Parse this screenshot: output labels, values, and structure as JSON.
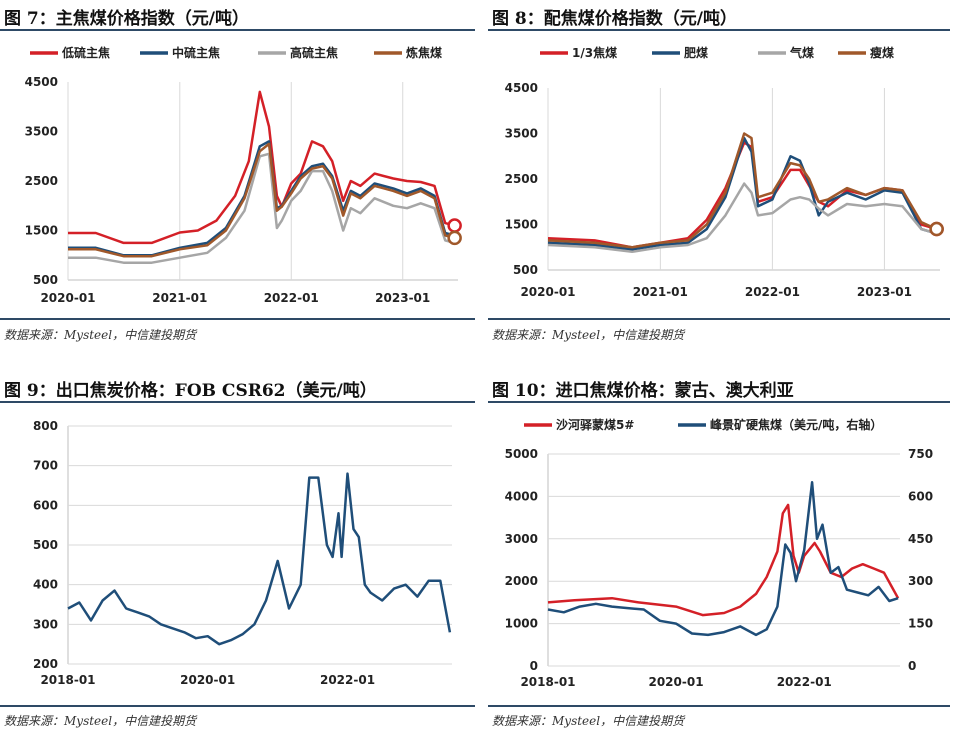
{
  "panels": [
    {
      "title": "图 7：主焦煤价格指数（元/吨）",
      "source": "数据来源：Mysteel，中信建投期货"
    },
    {
      "title": "图 8：配焦煤价格指数（元/吨）",
      "source": "数据来源：Mysteel，中信建投期货"
    },
    {
      "title": "图 9：出口焦炭价格：FOB CSR62（美元/吨）",
      "source": "数据来源：Mysteel，中信建投期货"
    },
    {
      "title": "图 10：进口焦煤价格：蒙古、澳大利亚",
      "source": "数据来源：Mysteel，中信建投期货"
    }
  ],
  "chart_data": [
    {
      "type": "line",
      "title": "图 7：主焦煤价格指数（元/吨）",
      "ylim": [
        500,
        4500
      ],
      "yticks": [
        "4500",
        "3500",
        "2500",
        "1500",
        "500"
      ],
      "xticks": [
        "2020-01",
        "2021-01",
        "2022-01",
        "2023-01"
      ],
      "xlim": [
        "2020-01-01",
        "2023-07-01"
      ],
      "grid": "vertical",
      "legend": "top",
      "series": [
        {
          "name": "低硫主焦",
          "color": "#d42027",
          "x": [
            "2020-01-01",
            "2020-04-01",
            "2020-07-01",
            "2020-10-01",
            "2021-01-01",
            "2021-03-01",
            "2021-05-01",
            "2021-07-01",
            "2021-08-15",
            "2021-09-20",
            "2021-10-20",
            "2021-11-15",
            "2021-12-01",
            "2022-01-01",
            "2022-02-01",
            "2022-03-10",
            "2022-04-15",
            "2022-05-15",
            "2022-06-20",
            "2022-07-15",
            "2022-08-15",
            "2022-10-01",
            "2022-12-01",
            "2023-01-15",
            "2023-03-01",
            "2023-04-15",
            "2023-05-20",
            "2023-06-20"
          ],
          "y": [
            1450,
            1450,
            1250,
            1250,
            1460,
            1500,
            1700,
            2200,
            2900,
            4300,
            3600,
            2200,
            1980,
            2450,
            2650,
            3300,
            3200,
            2900,
            2100,
            2500,
            2400,
            2650,
            2550,
            2500,
            2480,
            2400,
            1650,
            1600
          ]
        },
        {
          "name": "中硫主焦",
          "color": "#1f4e79",
          "x": [
            "2020-01-01",
            "2020-04-01",
            "2020-07-01",
            "2020-10-01",
            "2021-01-01",
            "2021-04-01",
            "2021-06-01",
            "2021-08-01",
            "2021-09-20",
            "2021-10-20",
            "2021-11-15",
            "2021-12-01",
            "2022-01-01",
            "2022-02-01",
            "2022-03-10",
            "2022-04-15",
            "2022-05-15",
            "2022-06-20",
            "2022-07-15",
            "2022-08-15",
            "2022-10-01",
            "2022-12-01",
            "2023-01-15",
            "2023-03-01",
            "2023-04-15",
            "2023-05-20",
            "2023-06-20"
          ],
          "y": [
            1150,
            1150,
            1000,
            1000,
            1150,
            1250,
            1550,
            2200,
            3200,
            3300,
            1950,
            2000,
            2300,
            2600,
            2800,
            2850,
            2600,
            1900,
            2300,
            2200,
            2450,
            2350,
            2250,
            2350,
            2200,
            1450,
            1400
          ]
        },
        {
          "name": "高硫主焦",
          "color": "#a6a6a6",
          "x": [
            "2020-01-01",
            "2020-04-01",
            "2020-07-01",
            "2020-10-01",
            "2021-01-01",
            "2021-04-01",
            "2021-06-01",
            "2021-08-01",
            "2021-09-20",
            "2021-10-20",
            "2021-11-15",
            "2021-12-01",
            "2022-01-01",
            "2022-02-01",
            "2022-03-10",
            "2022-04-15",
            "2022-05-15",
            "2022-06-20",
            "2022-07-15",
            "2022-08-15",
            "2022-10-01",
            "2022-12-01",
            "2023-01-15",
            "2023-03-01",
            "2023-04-15",
            "2023-05-20",
            "2023-06-20"
          ],
          "y": [
            950,
            950,
            850,
            850,
            950,
            1050,
            1350,
            1900,
            3000,
            3050,
            1550,
            1700,
            2100,
            2300,
            2700,
            2700,
            2300,
            1500,
            1950,
            1850,
            2150,
            2000,
            1950,
            2050,
            1950,
            1300,
            1250
          ]
        },
        {
          "name": "炼焦煤",
          "color": "#a0582a",
          "x": [
            "2020-01-01",
            "2020-04-01",
            "2020-07-01",
            "2020-10-01",
            "2021-01-01",
            "2021-04-01",
            "2021-06-01",
            "2021-08-01",
            "2021-09-20",
            "2021-10-20",
            "2021-11-15",
            "2021-12-01",
            "2022-01-01",
            "2022-02-01",
            "2022-03-10",
            "2022-04-15",
            "2022-05-15",
            "2022-06-20",
            "2022-07-15",
            "2022-08-15",
            "2022-10-01",
            "2022-12-01",
            "2023-01-15",
            "2023-03-01",
            "2023-04-15",
            "2023-05-20",
            "2023-06-20"
          ],
          "y": [
            1120,
            1120,
            980,
            980,
            1120,
            1200,
            1500,
            2150,
            3100,
            3250,
            1900,
            1980,
            2250,
            2550,
            2750,
            2800,
            2550,
            1800,
            2250,
            2150,
            2400,
            2300,
            2200,
            2300,
            2150,
            1400,
            1350
          ]
        }
      ]
    },
    {
      "type": "line",
      "title": "图 8：配焦煤价格指数（元/吨）",
      "ylim": [
        500,
        4500
      ],
      "yticks": [
        "4500",
        "3500",
        "2500",
        "1500",
        "500"
      ],
      "xticks": [
        "2020-01",
        "2021-01",
        "2022-01",
        "2023-01"
      ],
      "xlim": [
        "2020-01-01",
        "2023-07-01"
      ],
      "grid": "vertical",
      "legend": "top",
      "series": [
        {
          "name": "1/3焦煤",
          "color": "#d42027",
          "x": [
            "2020-01-01",
            "2020-06-01",
            "2020-10-01",
            "2021-01-01",
            "2021-04-01",
            "2021-06-01",
            "2021-08-01",
            "2021-10-01",
            "2021-10-25",
            "2021-11-15",
            "2022-01-01",
            "2022-03-01",
            "2022-04-01",
            "2022-05-01",
            "2022-06-01",
            "2022-07-01",
            "2022-09-01",
            "2022-11-01",
            "2023-01-01",
            "2023-03-01",
            "2023-05-01",
            "2023-06-20"
          ],
          "y": [
            1200,
            1150,
            1000,
            1100,
            1200,
            1600,
            2300,
            3300,
            3200,
            2000,
            2100,
            2700,
            2700,
            2350,
            2000,
            1900,
            2250,
            2150,
            2300,
            2250,
            1500,
            1400
          ]
        },
        {
          "name": "肥煤",
          "color": "#1f4e79",
          "x": [
            "2020-01-01",
            "2020-06-01",
            "2020-10-01",
            "2021-01-01",
            "2021-04-01",
            "2021-06-01",
            "2021-08-01",
            "2021-10-01",
            "2021-10-25",
            "2021-11-15",
            "2022-01-01",
            "2022-03-01",
            "2022-04-01",
            "2022-05-01",
            "2022-06-01",
            "2022-07-01",
            "2022-09-01",
            "2022-11-01",
            "2023-01-01",
            "2023-03-01",
            "2023-05-01",
            "2023-06-20"
          ],
          "y": [
            1100,
            1050,
            950,
            1050,
            1100,
            1400,
            2100,
            3400,
            3100,
            1900,
            2050,
            3000,
            2900,
            2400,
            1700,
            2000,
            2200,
            2050,
            2250,
            2200,
            1400,
            1300
          ]
        },
        {
          "name": "气煤",
          "color": "#a6a6a6",
          "x": [
            "2020-01-01",
            "2020-06-01",
            "2020-10-01",
            "2021-01-01",
            "2021-04-01",
            "2021-06-01",
            "2021-08-01",
            "2021-10-01",
            "2021-10-25",
            "2021-11-15",
            "2022-01-01",
            "2022-03-01",
            "2022-04-01",
            "2022-05-01",
            "2022-06-01",
            "2022-07-01",
            "2022-09-01",
            "2022-11-01",
            "2023-01-01",
            "2023-03-01",
            "2023-05-01",
            "2023-06-20"
          ],
          "y": [
            1050,
            1000,
            900,
            1000,
            1050,
            1200,
            1700,
            2400,
            2200,
            1700,
            1750,
            2050,
            2100,
            2050,
            1850,
            1700,
            1950,
            1900,
            1950,
            1900,
            1400,
            1300
          ]
        },
        {
          "name": "瘦煤",
          "color": "#a0582a",
          "x": [
            "2020-01-01",
            "2020-06-01",
            "2020-10-01",
            "2021-01-01",
            "2021-04-01",
            "2021-06-01",
            "2021-08-01",
            "2021-10-01",
            "2021-10-25",
            "2021-11-15",
            "2022-01-01",
            "2022-03-01",
            "2022-04-01",
            "2022-05-01",
            "2022-06-01",
            "2022-07-01",
            "2022-09-01",
            "2022-11-01",
            "2023-01-01",
            "2023-03-01",
            "2023-05-01",
            "2023-06-20"
          ],
          "y": [
            1150,
            1100,
            1000,
            1100,
            1150,
            1500,
            2200,
            3500,
            3400,
            2100,
            2200,
            2850,
            2800,
            2500,
            2000,
            2050,
            2300,
            2150,
            2300,
            2250,
            1550,
            1400
          ]
        }
      ]
    },
    {
      "type": "line",
      "title": "图 9：出口焦炭价格：FOB CSR62（美元/吨）",
      "ylim": [
        200,
        800
      ],
      "yticks": [
        "800",
        "700",
        "600",
        "500",
        "400",
        "300",
        "200"
      ],
      "xticks": [
        "2018-01",
        "2020-01",
        "2022-01"
      ],
      "xlim": [
        "2018-01-01",
        "2023-07-01"
      ],
      "grid": "horizontal",
      "series": [
        {
          "name": "",
          "color": "#1f4e79",
          "x": [
            "2018-01-01",
            "2018-03-01",
            "2018-05-01",
            "2018-07-01",
            "2018-09-01",
            "2018-11-01",
            "2019-01-01",
            "2019-03-01",
            "2019-05-01",
            "2019-07-01",
            "2019-09-01",
            "2019-11-01",
            "2020-01-01",
            "2020-03-01",
            "2020-05-01",
            "2020-07-01",
            "2020-09-01",
            "2020-11-01",
            "2021-01-01",
            "2021-03-01",
            "2021-05-01",
            "2021-06-15",
            "2021-08-01",
            "2021-09-15",
            "2021-10-15",
            "2021-11-15",
            "2021-12-01",
            "2022-01-01",
            "2022-02-01",
            "2022-03-01",
            "2022-04-01",
            "2022-05-01",
            "2022-06-01",
            "2022-07-01",
            "2022-09-01",
            "2022-11-01",
            "2023-01-01",
            "2023-03-01",
            "2023-05-01",
            "2023-06-20"
          ],
          "y": [
            340,
            355,
            310,
            360,
            385,
            340,
            330,
            320,
            300,
            290,
            280,
            265,
            270,
            250,
            260,
            275,
            300,
            360,
            460,
            340,
            400,
            670,
            670,
            500,
            470,
            580,
            470,
            680,
            540,
            520,
            400,
            380,
            370,
            360,
            390,
            400,
            370,
            410,
            410,
            280
          ]
        }
      ]
    },
    {
      "type": "line",
      "title": "图 10：进口焦煤价格：蒙古、澳大利亚",
      "ylim": [
        0,
        5000
      ],
      "yticks": [
        "5000",
        "4000",
        "3000",
        "2000",
        "1000",
        "0"
      ],
      "y2lim": [
        0,
        750
      ],
      "y2ticks": [
        "750",
        "600",
        "450",
        "300",
        "150",
        "0"
      ],
      "xticks": [
        "2018-01",
        "2020-01",
        "2022-01"
      ],
      "xlim": [
        "2018-01-01",
        "2023-07-01"
      ],
      "grid": "horizontal",
      "legend": "top",
      "series": [
        {
          "name": "沙河驿蒙煤5#",
          "color": "#d42027",
          "axis": "left",
          "x": [
            "2018-01-01",
            "2018-06-01",
            "2019-01-01",
            "2019-06-01",
            "2020-01-01",
            "2020-06-01",
            "2020-10-01",
            "2021-01-01",
            "2021-04-01",
            "2021-06-01",
            "2021-08-01",
            "2021-09-01",
            "2021-10-01",
            "2021-11-01",
            "2021-12-01",
            "2022-01-01",
            "2022-03-01",
            "2022-04-01",
            "2022-06-01",
            "2022-08-01",
            "2022-10-01",
            "2022-12-01",
            "2023-02-01",
            "2023-04-01",
            "2023-06-20"
          ],
          "y": [
            1500,
            1550,
            1600,
            1500,
            1400,
            1200,
            1250,
            1400,
            1700,
            2100,
            2700,
            3600,
            3800,
            2600,
            2200,
            2600,
            2900,
            2700,
            2200,
            2100,
            2300,
            2400,
            2300,
            2200,
            1600
          ]
        },
        {
          "name": "峰景矿硬焦煤（美元/吨，右轴）",
          "color": "#1f4e79",
          "axis": "right",
          "x": [
            "2018-01-01",
            "2018-04-01",
            "2018-07-01",
            "2018-10-01",
            "2019-01-01",
            "2019-04-01",
            "2019-07-01",
            "2019-10-01",
            "2020-01-01",
            "2020-04-01",
            "2020-07-01",
            "2020-10-01",
            "2021-01-01",
            "2021-04-01",
            "2021-06-01",
            "2021-08-01",
            "2021-09-15",
            "2021-10-15",
            "2021-11-15",
            "2022-01-01",
            "2022-02-15",
            "2022-03-15",
            "2022-04-15",
            "2022-06-01",
            "2022-07-15",
            "2022-09-01",
            "2022-11-01",
            "2023-01-01",
            "2023-03-01",
            "2023-05-01",
            "2023-06-20"
          ],
          "y": [
            200,
            190,
            210,
            220,
            210,
            205,
            200,
            160,
            150,
            115,
            110,
            120,
            140,
            110,
            130,
            210,
            430,
            400,
            300,
            410,
            650,
            450,
            500,
            330,
            350,
            270,
            260,
            250,
            280,
            230,
            240
          ]
        }
      ]
    }
  ]
}
